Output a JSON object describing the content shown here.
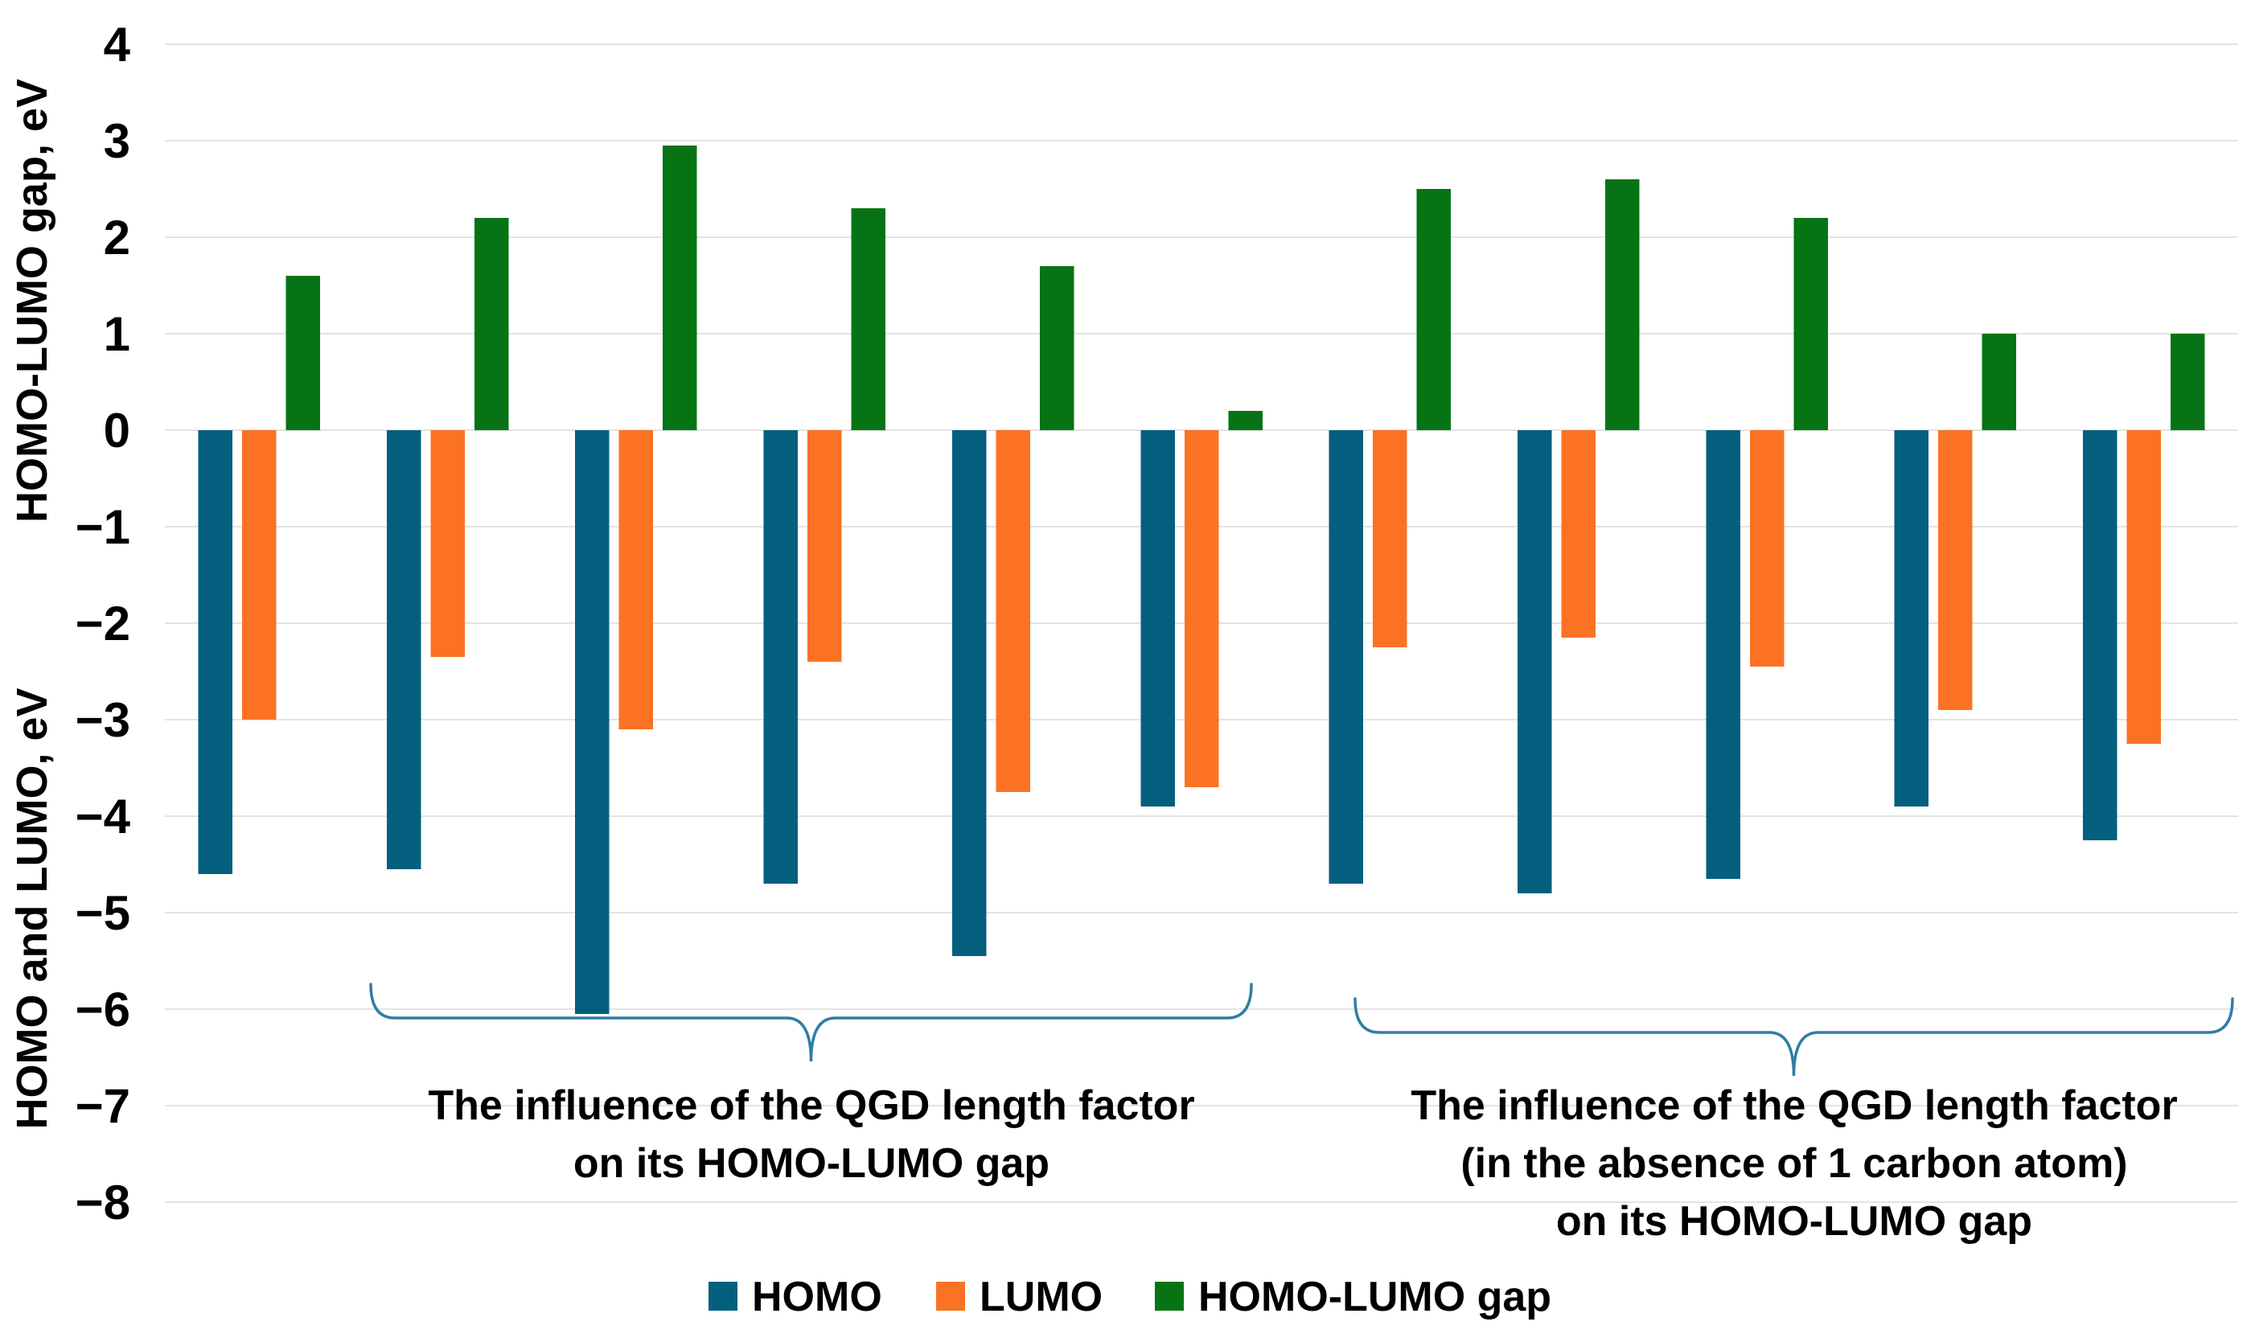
{
  "chart_data": {
    "type": "bar",
    "title": "",
    "ylabel_top": "HOMO-LUMO gap, eV",
    "ylabel_bottom": "HOMO and LUMO, eV",
    "ylim": [
      -8,
      4
    ],
    "ytick_step": 1,
    "grid": true,
    "n_groups": 11,
    "category_labels_visible": false,
    "legend_position": "bottom",
    "series": [
      {
        "name": "HOMO",
        "color": "#045F7E",
        "values": [
          -4.6,
          -4.55,
          -6.05,
          -4.7,
          -5.45,
          -3.9,
          -4.7,
          -4.8,
          -4.65,
          -3.9,
          -4.25
        ]
      },
      {
        "name": "LUMO",
        "color": "#FB7224",
        "values": [
          -3.0,
          -2.35,
          -3.1,
          -2.4,
          -3.75,
          -3.7,
          -2.25,
          -2.15,
          -2.45,
          -2.9,
          -3.25
        ]
      },
      {
        "name": "HOMO-LUMO gap",
        "color": "#067414",
        "values": [
          1.6,
          2.2,
          2.95,
          2.3,
          1.7,
          0.2,
          2.5,
          2.6,
          2.2,
          1.0,
          1.0
        ]
      }
    ],
    "style": {
      "background": "#ffffff",
      "gridline_color": "#E3E3E3",
      "brace_color": "#2E7EA6",
      "text_color": "#000000"
    }
  },
  "annotations": {
    "cluster1": {
      "lines": [
        "The influence of the QGD length factor",
        "on its HOMO-LUMO gap"
      ],
      "brace_groups": "2-6"
    },
    "cluster2": {
      "lines": [
        "The influence of the QGD length factor",
        "(in the absence of 1 carbon atom)",
        "on its HOMO-LUMO gap"
      ],
      "brace_groups": "7-11"
    }
  }
}
